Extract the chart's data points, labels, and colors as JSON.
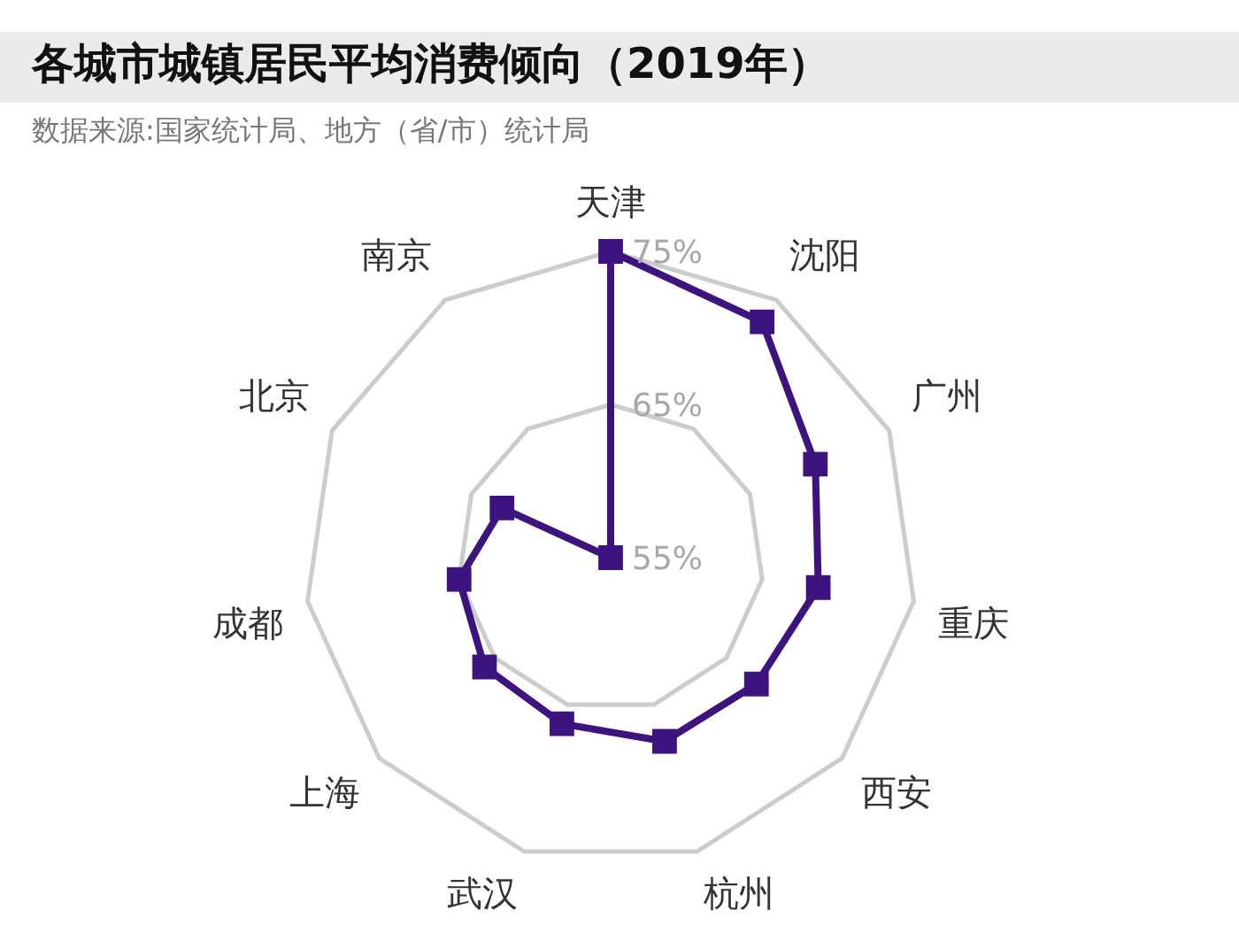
{
  "chart_data": {
    "type": "radar",
    "title": "各城市城镇居民平均消费倾向（2019年）",
    "subtitle": "数据来源:国家统计局、地方（省/市）统计局",
    "categories": [
      "天津",
      "沈阳",
      "广州",
      "重庆",
      "西安",
      "杭州",
      "武汉",
      "上海",
      "成都",
      "北京",
      "南京"
    ],
    "series": [
      {
        "color": "#3d1380",
        "values": [
          75,
          73.3,
          69.7,
          68.7,
          67.6,
          67.5,
          66.3,
          65.9,
          65,
          62.8,
          55
        ]
      }
    ],
    "ylim": [
      55,
      75
    ],
    "yticks": [
      {
        "value": 55,
        "label": "55%"
      },
      {
        "value": 65,
        "label": "65%"
      },
      {
        "value": 75,
        "label": "75%"
      }
    ],
    "grid": true,
    "legend": false,
    "marker": "square",
    "line_style": "solid"
  }
}
